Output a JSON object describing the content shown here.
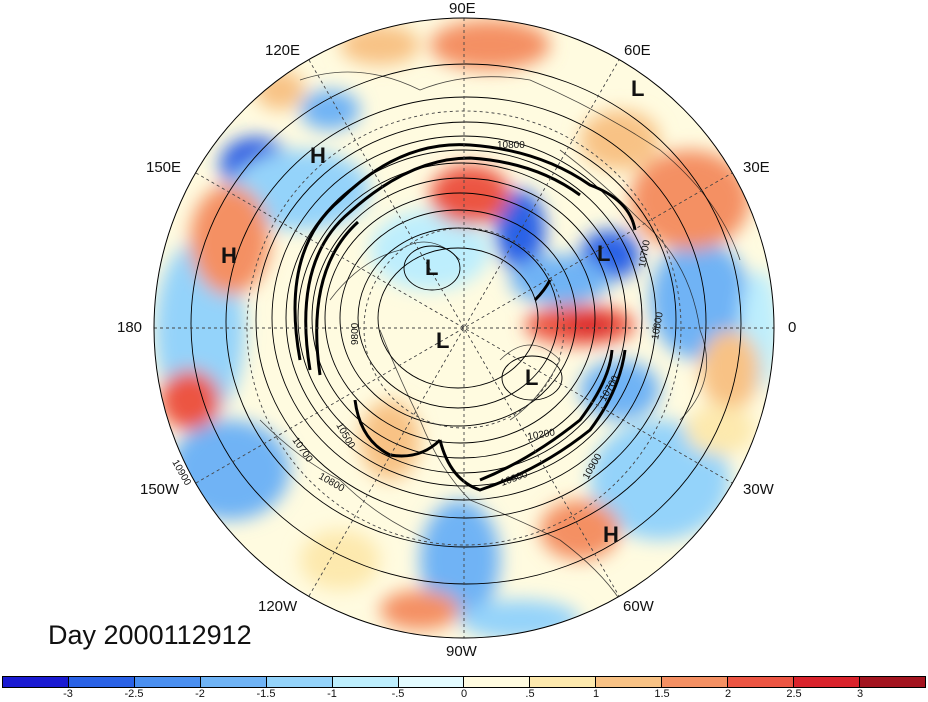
{
  "map": {
    "type": "north-polar-stereographic",
    "date_label": "Day 2000112912",
    "longitude_labels": {
      "lon_90e": "90E",
      "lon_120e": "120E",
      "lon_60e": "60E",
      "lon_150e": "150E",
      "lon_30e": "30E",
      "lon_180": "180",
      "lon_0": "0",
      "lon_150w": "150W",
      "lon_30w": "30W",
      "lon_120w": "120W",
      "lon_60w": "60W",
      "lon_90w": "90W"
    },
    "pressure_centers": {
      "h_pacific": "H",
      "h_siberia": "H",
      "h_atlantic": "H",
      "l_top_right": "L",
      "l_europe": "L",
      "l_arctic": "L",
      "l_pole": "L",
      "l_greenland": "L"
    },
    "contour_labels": {
      "c10800_top": "10800",
      "c10700_right": "10700",
      "c10600_right": "10600",
      "c10700_se": "10700",
      "c10900_se": "10900",
      "c10200": "10200",
      "c9800": "9800",
      "c10700_sw": "10700",
      "c10500_sw": "10500",
      "c10800_sw": "10800",
      "c10900_left": "10900",
      "c10300": "10300"
    }
  },
  "colorbar": {
    "ticks": [
      "-3",
      "-2.5",
      "-2",
      "-1.5",
      "-1",
      "-.5",
      "0",
      ".5",
      "1",
      "1.5",
      "2",
      "2.5",
      "3"
    ],
    "colors": [
      "#1a1ad2",
      "#2a62e6",
      "#4a8ff0",
      "#6fb3f5",
      "#94d3fa",
      "#bdeefd",
      "#e3fbff",
      "#fffbe0",
      "#fde9ae",
      "#f8c285",
      "#f49063",
      "#ec5543",
      "#d9232c",
      "#a3141f"
    ]
  }
}
